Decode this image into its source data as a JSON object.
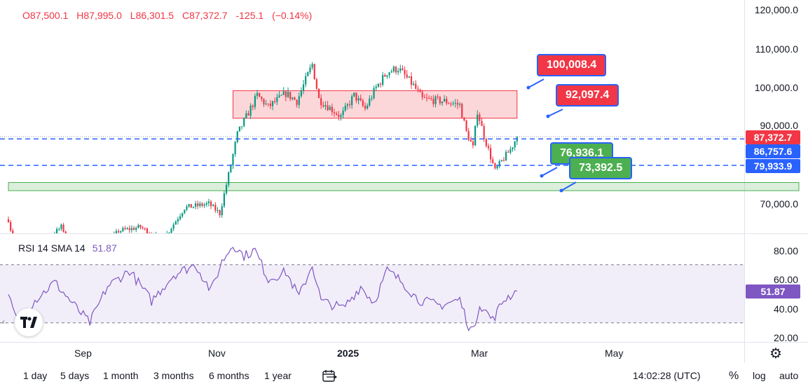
{
  "header": {
    "open": "O87,500.1",
    "high": "H87,995.0",
    "low": "L86,301.5",
    "close": "C87,372.7",
    "change": "-125.1",
    "change_pct": "(−0.14%)"
  },
  "price_axis": {
    "labels": [
      "120,000.0",
      "110,000.0",
      "100,000.0",
      "90,000.0",
      "70,000.0"
    ],
    "tags": [
      {
        "value": "87,372.7",
        "color": "#f23645"
      },
      {
        "value": "86,757.6",
        "color": "#2962ff"
      },
      {
        "value": "79,933.9",
        "color": "#2962ff"
      }
    ]
  },
  "callouts": {
    "level_1": "100,008.4",
    "level_2": "92,097.4",
    "level_3": "76,936.1",
    "level_4": "73,392.5"
  },
  "rsi": {
    "name": "RSI 14 SMA 14",
    "value": "51.87",
    "labels": [
      "80.00",
      "60.00",
      "40.00",
      "20.00"
    ],
    "tag": "51.87"
  },
  "time_axis": {
    "labels": [
      "Sep",
      "Nov",
      "2025",
      "Mar",
      "May"
    ]
  },
  "bottom_bar": {
    "ranges": [
      "1 day",
      "5 days",
      "1 month",
      "3 months",
      "6 months",
      "1 year"
    ],
    "time": "14:02:28 (UTC)",
    "pct": "%",
    "log": "log",
    "auto": "auto"
  },
  "icons": {
    "calendar": "calendar-range-icon",
    "settings": "gear-icon",
    "logo": "tradingview-logo-icon"
  },
  "colors": {
    "up": "#089981",
    "down": "#f23645",
    "rsi_line": "#7e57c2",
    "blue": "#2962ff"
  },
  "chart_data": {
    "type": "candlestick",
    "x_start": "2024-08-01",
    "x_end": "2025-03-22",
    "y_range": [
      60000,
      122000
    ],
    "close_path": [
      [
        "2024-08-01",
        66000
      ],
      [
        "2024-08-05",
        56000
      ],
      [
        "2024-08-15",
        59000
      ],
      [
        "2024-08-25",
        64000
      ],
      [
        "2024-09-06",
        54000
      ],
      [
        "2024-09-20",
        63000
      ],
      [
        "2024-09-30",
        64000
      ],
      [
        "2024-10-10",
        60500
      ],
      [
        "2024-10-20",
        69000
      ],
      [
        "2024-10-31",
        70000
      ],
      [
        "2024-11-05",
        67500
      ],
      [
        "2024-11-10",
        80000
      ],
      [
        "2024-11-13",
        88000
      ],
      [
        "2024-11-22",
        98000
      ],
      [
        "2024-11-27",
        95000
      ],
      [
        "2024-12-05",
        98500
      ],
      [
        "2024-12-10",
        96500
      ],
      [
        "2024-12-17",
        106000
      ],
      [
        "2024-12-20",
        97000
      ],
      [
        "2024-12-30",
        92500
      ],
      [
        "2025-01-05",
        98000
      ],
      [
        "2025-01-10",
        94500
      ],
      [
        "2025-01-15",
        100000
      ],
      [
        "2025-01-20",
        104000
      ],
      [
        "2025-01-25",
        105000
      ],
      [
        "2025-02-01",
        100500
      ],
      [
        "2025-02-05",
        97000
      ],
      [
        "2025-02-15",
        96500
      ],
      [
        "2025-02-22",
        95500
      ],
      [
        "2025-02-25",
        88500
      ],
      [
        "2025-02-28",
        84500
      ],
      [
        "2025-03-02",
        94000
      ],
      [
        "2025-03-05",
        87500
      ],
      [
        "2025-03-10",
        78500
      ],
      [
        "2025-03-13",
        81000
      ],
      [
        "2025-03-17",
        84000
      ],
      [
        "2025-03-20",
        87372.7
      ]
    ],
    "zones": [
      {
        "type": "resistance",
        "from": "2024-11-11",
        "to": "2025-03-20",
        "y_low": 92100,
        "y_high": 99200
      },
      {
        "type": "support",
        "from": "2024-08-01",
        "to": "2025-07-26",
        "y_low": 73400,
        "y_high": 75500
      }
    ],
    "h_lines": [
      86757.6,
      79933.9
    ],
    "dotted_line": 87372.7,
    "rsi": {
      "bands": [
        70,
        30
      ],
      "ylim": [
        20,
        85
      ],
      "series": [
        [
          "2024-08-01",
          48
        ],
        [
          "2024-08-06",
          27
        ],
        [
          "2024-08-12",
          44
        ],
        [
          "2024-08-22",
          58
        ],
        [
          "2024-09-01",
          40
        ],
        [
          "2024-09-07",
          30
        ],
        [
          "2024-09-15",
          55
        ],
        [
          "2024-09-25",
          66
        ],
        [
          "2024-10-05",
          45
        ],
        [
          "2024-10-15",
          63
        ],
        [
          "2024-10-25",
          70
        ],
        [
          "2024-11-01",
          52
        ],
        [
          "2024-11-06",
          72
        ],
        [
          "2024-11-11",
          84
        ],
        [
          "2024-11-16",
          76
        ],
        [
          "2024-11-21",
          80
        ],
        [
          "2024-11-27",
          60
        ],
        [
          "2024-12-05",
          65
        ],
        [
          "2024-12-11",
          48
        ],
        [
          "2024-12-17",
          70
        ],
        [
          "2024-12-21",
          45
        ],
        [
          "2024-12-31",
          40
        ],
        [
          "2025-01-08",
          55
        ],
        [
          "2025-01-14",
          44
        ],
        [
          "2025-01-20",
          66
        ],
        [
          "2025-01-27",
          58
        ],
        [
          "2025-02-03",
          46
        ],
        [
          "2025-02-13",
          42
        ],
        [
          "2025-02-22",
          46
        ],
        [
          "2025-02-26",
          28
        ],
        [
          "2025-02-28",
          24
        ],
        [
          "2025-03-03",
          43
        ],
        [
          "2025-03-09",
          32
        ],
        [
          "2025-03-14",
          46
        ],
        [
          "2025-03-20",
          51.87
        ]
      ]
    }
  }
}
